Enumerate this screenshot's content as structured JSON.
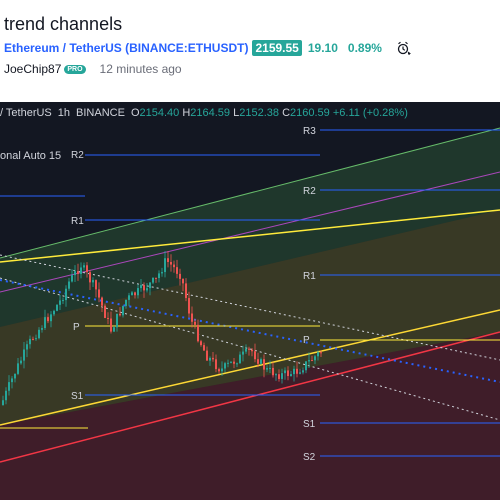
{
  "header": {
    "title": "trend channels",
    "symbol": "Ethereum / TetherUS (BINANCE:ETHUSDT)",
    "price": "2159.55",
    "change": "19.10",
    "change_pct": "0.89%",
    "author": "JoeChip87",
    "author_badge": "PRO",
    "time_ago": "12 minutes ago",
    "accent_color": "#2962ff",
    "up_color": "#26a69a"
  },
  "ohlc_bar": {
    "symbol": "/ TetherUS",
    "interval": "1h",
    "exchange": "BINANCE",
    "o_label": "O",
    "o_value": "2154.40",
    "h_label": "H",
    "h_value": "2164.59",
    "l_label": "L",
    "l_value": "2152.38",
    "c_label": "C",
    "c_value": "2160.59",
    "change": "+6.11 (+0.28%)"
  },
  "indicator": {
    "label": "onal Auto 15"
  },
  "pivot_labels": {
    "r3": "R3",
    "r2_left": "R2",
    "r2_right": "R2",
    "r1_left": "R1",
    "r1_right": "R1",
    "p_left": "P",
    "p_right": "P",
    "s1_left": "S1",
    "s1_right": "S1",
    "s2": "S2"
  },
  "colors": {
    "chart_bg": "#131722",
    "pivot_line": "#2962ff",
    "yellow": "#ffeb3b",
    "pink": "#f23645",
    "green": "#4caf50",
    "purple": "#9c27b0"
  }
}
